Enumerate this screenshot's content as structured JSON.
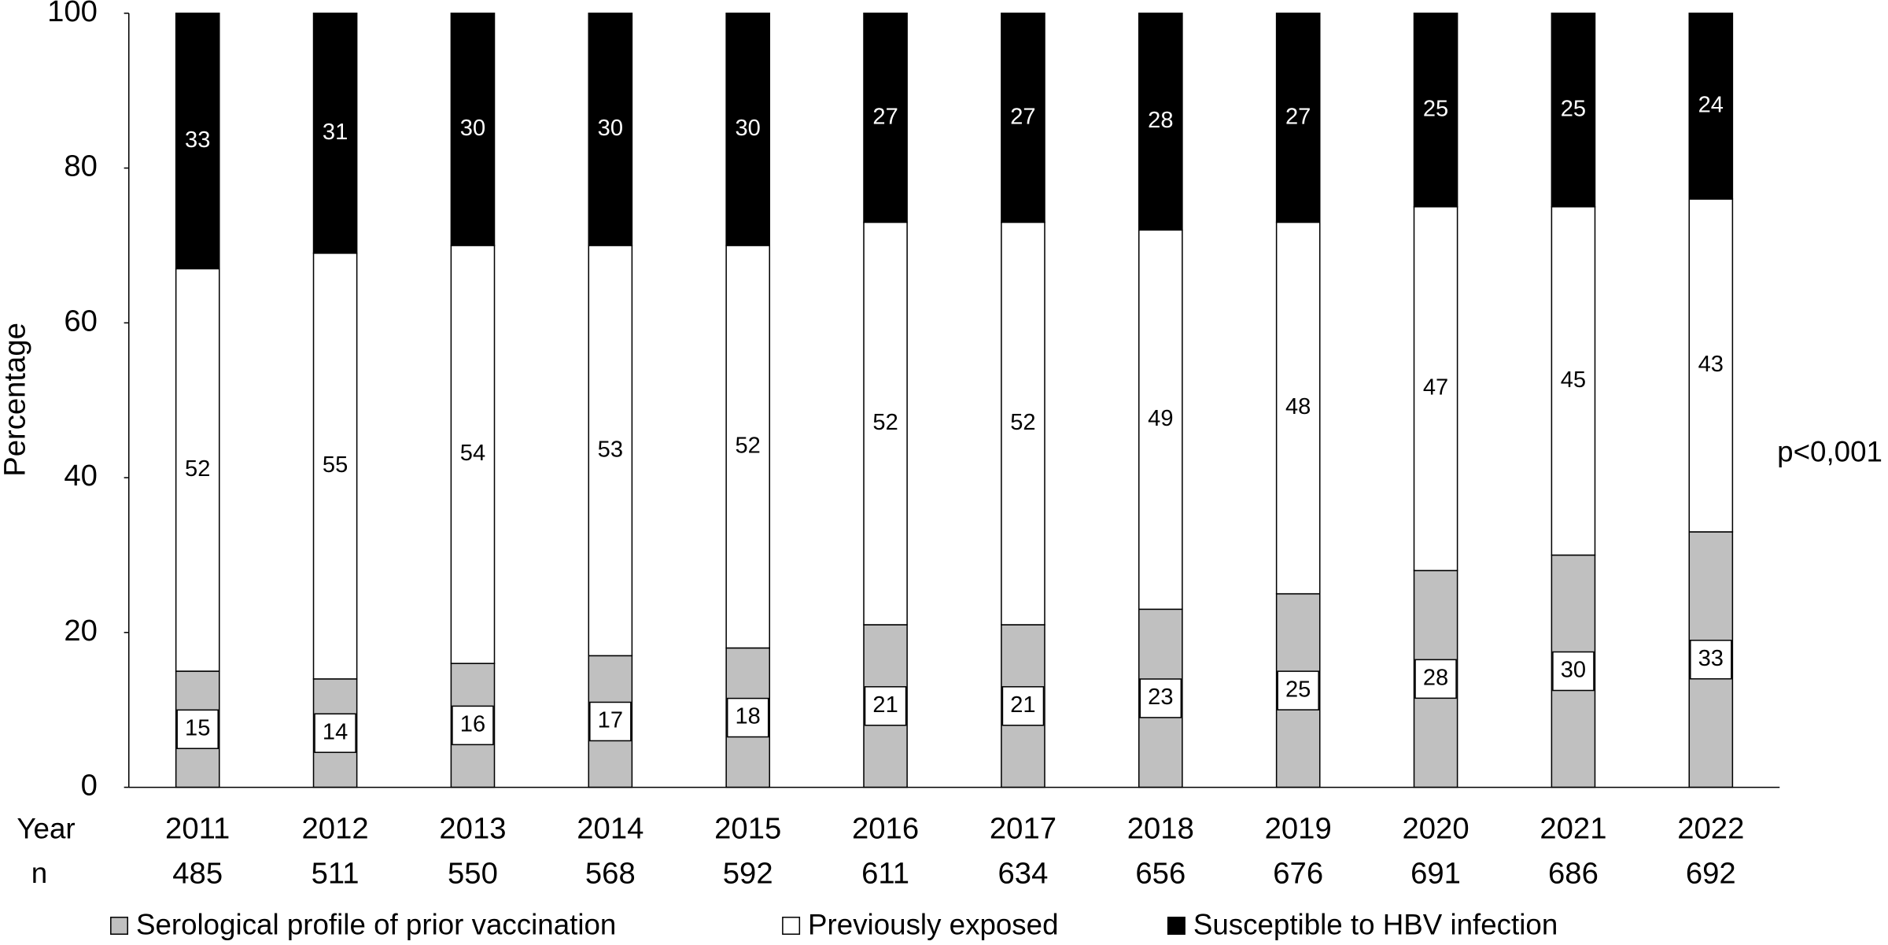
{
  "chart_data": {
    "type": "stacked_bar",
    "y_label": "Percentage",
    "categories": [
      "2011",
      "2012",
      "2013",
      "2014",
      "2015",
      "2016",
      "2017",
      "2018",
      "2019",
      "2020",
      "2021",
      "2022"
    ],
    "category_row_label": "Year",
    "n_row_label": "n",
    "n_values": [
      485,
      511,
      550,
      568,
      592,
      611,
      634,
      656,
      676,
      691,
      686,
      692
    ],
    "series": [
      {
        "name": "Serological profile of prior vaccination",
        "color": "#c0c0c0",
        "values": [
          15,
          14,
          16,
          17,
          18,
          21,
          21,
          23,
          25,
          28,
          30,
          33
        ]
      },
      {
        "name": "Previously exposed",
        "color": "#ffffff",
        "values": [
          52,
          55,
          54,
          53,
          52,
          52,
          52,
          49,
          48,
          47,
          45,
          43
        ]
      },
      {
        "name": "Susceptible to HBV infection",
        "color": "#000000",
        "values": [
          33,
          31,
          30,
          30,
          30,
          27,
          27,
          28,
          27,
          25,
          25,
          24
        ]
      }
    ],
    "ylim": [
      0,
      100
    ],
    "yticks": [
      0,
      20,
      40,
      60,
      80,
      100
    ],
    "grid": false,
    "annotation": "p<0,001",
    "legend": "bottom"
  }
}
